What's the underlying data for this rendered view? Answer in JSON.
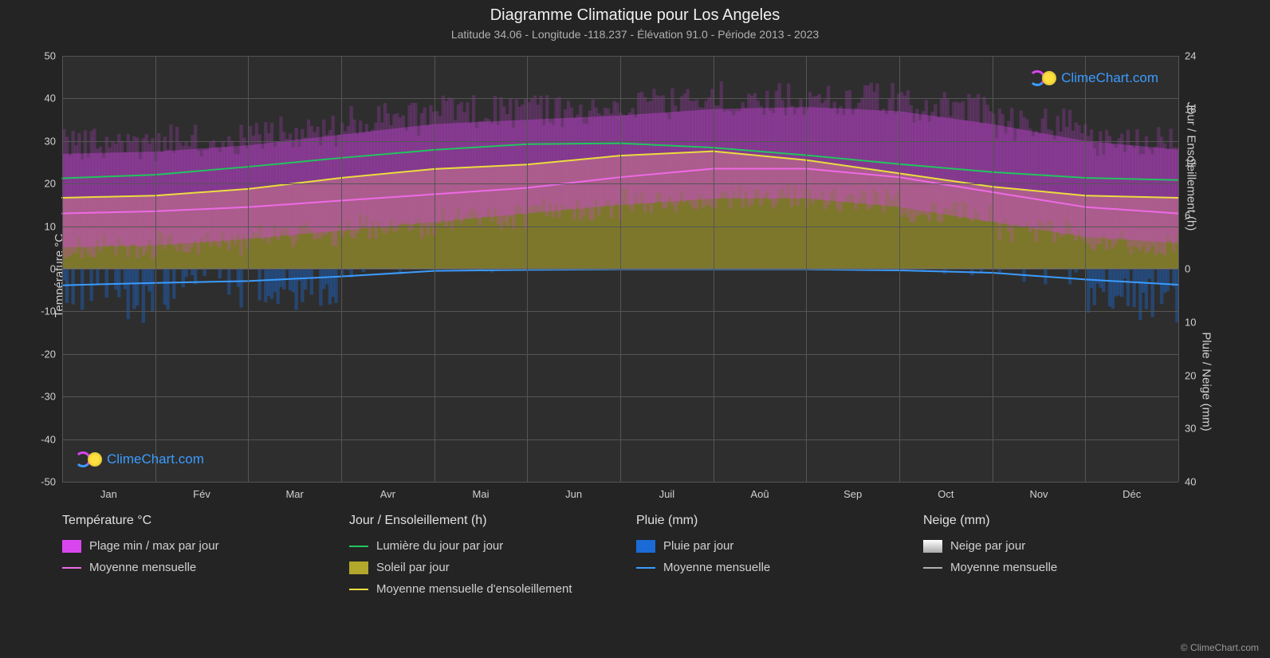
{
  "title": "Diagramme Climatique pour Los Angeles",
  "subtitle": "Latitude 34.06 - Longitude -118.237 - Élévation 91.0 - Période 2013 - 2023",
  "chart": {
    "type": "climate-chart",
    "background_color": "#242424",
    "plot_background": "#2e2e2e",
    "grid_color": "#555555",
    "text_color": "#d0d0d0",
    "title_fontsize": 20,
    "subtitle_fontsize": 14,
    "axis_fontsize": 13,
    "months": [
      "Jan",
      "Fév",
      "Mar",
      "Avr",
      "Mai",
      "Jun",
      "Juil",
      "Aoû",
      "Sep",
      "Oct",
      "Nov",
      "Déc"
    ],
    "y_left": {
      "title": "Température °C",
      "min": -50,
      "max": 50,
      "step": 10,
      "ticks": [
        50,
        40,
        30,
        20,
        10,
        0,
        -10,
        -20,
        -30,
        -40,
        -50
      ]
    },
    "y_right_top": {
      "title": "Jour / Ensoleillement (h)",
      "min": 0,
      "max": 24,
      "step": 6,
      "ticks": [
        24,
        18,
        12,
        6,
        0
      ]
    },
    "y_right_bottom": {
      "title": "Pluie / Neige (mm)",
      "min": 0,
      "max": 40,
      "step": 10,
      "ticks": [
        0,
        10,
        20,
        30,
        40
      ]
    },
    "series": {
      "temp_minmax_band": {
        "color": "#d946ef",
        "opacity": 0.55,
        "low": [
          5,
          6,
          8,
          10,
          12,
          14,
          16,
          17,
          16,
          13,
          9,
          6
        ],
        "high": [
          27,
          28,
          30,
          33,
          35,
          35,
          37,
          38,
          38,
          36,
          32,
          28
        ]
      },
      "temp_mean": {
        "color": "#ee6ae6",
        "width": 2,
        "values": [
          13,
          14,
          15,
          17,
          18,
          20,
          23,
          24,
          23,
          20,
          16,
          13
        ]
      },
      "daylight": {
        "color": "#22c55e",
        "width": 2,
        "values_hours": [
          10.2,
          11.0,
          12.0,
          13.0,
          13.8,
          14.3,
          14.0,
          13.3,
          12.3,
          11.3,
          10.5,
          10.0
        ]
      },
      "sunshine_band": {
        "color": "#b2a82b",
        "opacity": 0.6,
        "values_hours": [
          8.0,
          8.5,
          9.5,
          11.0,
          11.5,
          12.0,
          13.5,
          13.0,
          11.5,
          10.0,
          8.5,
          8.0
        ]
      },
      "sunshine_mean": {
        "color": "#eadd3f",
        "width": 2,
        "values_hours": [
          8.0,
          8.5,
          9.5,
          11.0,
          11.5,
          12.0,
          13.5,
          13.0,
          11.5,
          10.0,
          8.5,
          8.0
        ]
      },
      "rain_daily": {
        "color": "#1b6bd6",
        "opacity": 0.4
      },
      "rain_mean": {
        "color": "#3b9cff",
        "width": 2,
        "values_mm": [
          3.1,
          2.2,
          2.4,
          0.5,
          0.3,
          0.1,
          0.1,
          0.1,
          0.1,
          0.5,
          1.0,
          3.0
        ]
      },
      "snow_daily": {
        "color": "#e0e0e0"
      },
      "snow_mean": {
        "color": "#b0b0b0",
        "width": 2
      }
    }
  },
  "legend": {
    "temp": {
      "title": "Température °C",
      "range": "Plage min / max par jour",
      "mean": "Moyenne mensuelle"
    },
    "daylight": {
      "title": "Jour / Ensoleillement (h)",
      "day": "Lumière du jour par jour",
      "sun": "Soleil par jour",
      "sunmean": "Moyenne mensuelle d'ensoleillement"
    },
    "rain": {
      "title": "Pluie (mm)",
      "perday": "Pluie par jour",
      "mean": "Moyenne mensuelle"
    },
    "snow": {
      "title": "Neige (mm)",
      "perday": "Neige par jour",
      "mean": "Moyenne mensuelle"
    }
  },
  "watermark": "ClimeChart.com",
  "copyright": "© ClimeChart.com"
}
